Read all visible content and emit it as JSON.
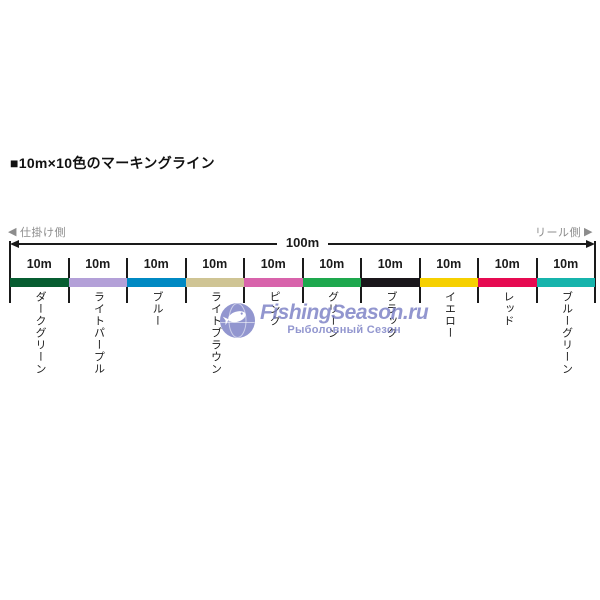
{
  "title": "■10m×10色のマーキングライン",
  "diagram": {
    "left_side": {
      "arrow": "◀",
      "label": "仕掛け側"
    },
    "right_side": {
      "label": "リール側",
      "arrow": "▶"
    },
    "total_length_label": "100m",
    "segments": [
      {
        "length": "10m",
        "color_name": "ダークグリーン",
        "color": "#075d31"
      },
      {
        "length": "10m",
        "color_name": "ライトパープル",
        "color": "#b3a0d8"
      },
      {
        "length": "10m",
        "color_name": "ブルー",
        "color": "#0089c3"
      },
      {
        "length": "10m",
        "color_name": "ライトブラウン",
        "color": "#cfc494"
      },
      {
        "length": "10m",
        "color_name": "ピンク",
        "color": "#d863ab"
      },
      {
        "length": "10m",
        "color_name": "グリーン",
        "color": "#1ea84e"
      },
      {
        "length": "10m",
        "color_name": "ブラック",
        "color": "#1a171b"
      },
      {
        "length": "10m",
        "color_name": "イエロー",
        "color": "#f6d000"
      },
      {
        "length": "10m",
        "color_name": "レッド",
        "color": "#e60a51"
      },
      {
        "length": "10m",
        "color_name": "ブルーグリーン",
        "color": "#16b4ac"
      }
    ],
    "line_color": "#1a1a1a",
    "side_label_color": "#8c8c8c"
  },
  "watermark": {
    "site_name": "FishingSeason.ru",
    "site_subtitle": "Рыболовный Сезон",
    "color": "#7b80c5",
    "logo": "fish-globe-icon"
  }
}
